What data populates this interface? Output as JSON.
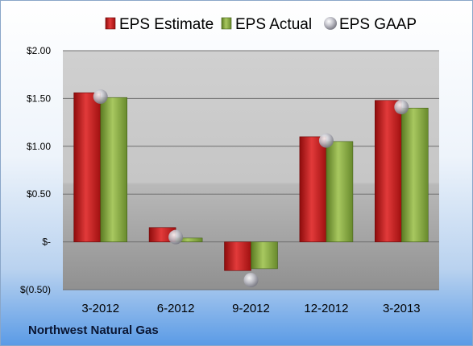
{
  "company_name": "Northwest Natural Gas",
  "chart_data": {
    "type": "bar",
    "title": "",
    "xlabel": "",
    "ylabel": "",
    "categories": [
      "3-2012",
      "6-2012",
      "9-2012",
      "12-2012",
      "3-2013"
    ],
    "series": [
      {
        "name": "EPS Estimate",
        "type": "bar",
        "color": "#d42020",
        "values": [
          1.56,
          0.15,
          -0.3,
          1.1,
          1.48
        ]
      },
      {
        "name": "EPS Actual",
        "type": "bar",
        "color": "#8fb040",
        "values": [
          1.51,
          0.04,
          -0.28,
          1.05,
          1.4
        ]
      },
      {
        "name": "EPS GAAP",
        "type": "marker",
        "color": "#b0b0b8",
        "values": [
          1.52,
          0.05,
          -0.4,
          1.06,
          1.41
        ]
      }
    ],
    "ylim": [
      -0.5,
      2.0
    ],
    "yticks": [
      2.0,
      1.5,
      1.0,
      0.5,
      0.0,
      -0.5
    ],
    "ytick_labels": [
      "$2.00",
      "$1.50",
      "$1.00",
      "$0.50",
      "$-",
      "$(0.50)"
    ],
    "grid": true,
    "legend": "top"
  }
}
